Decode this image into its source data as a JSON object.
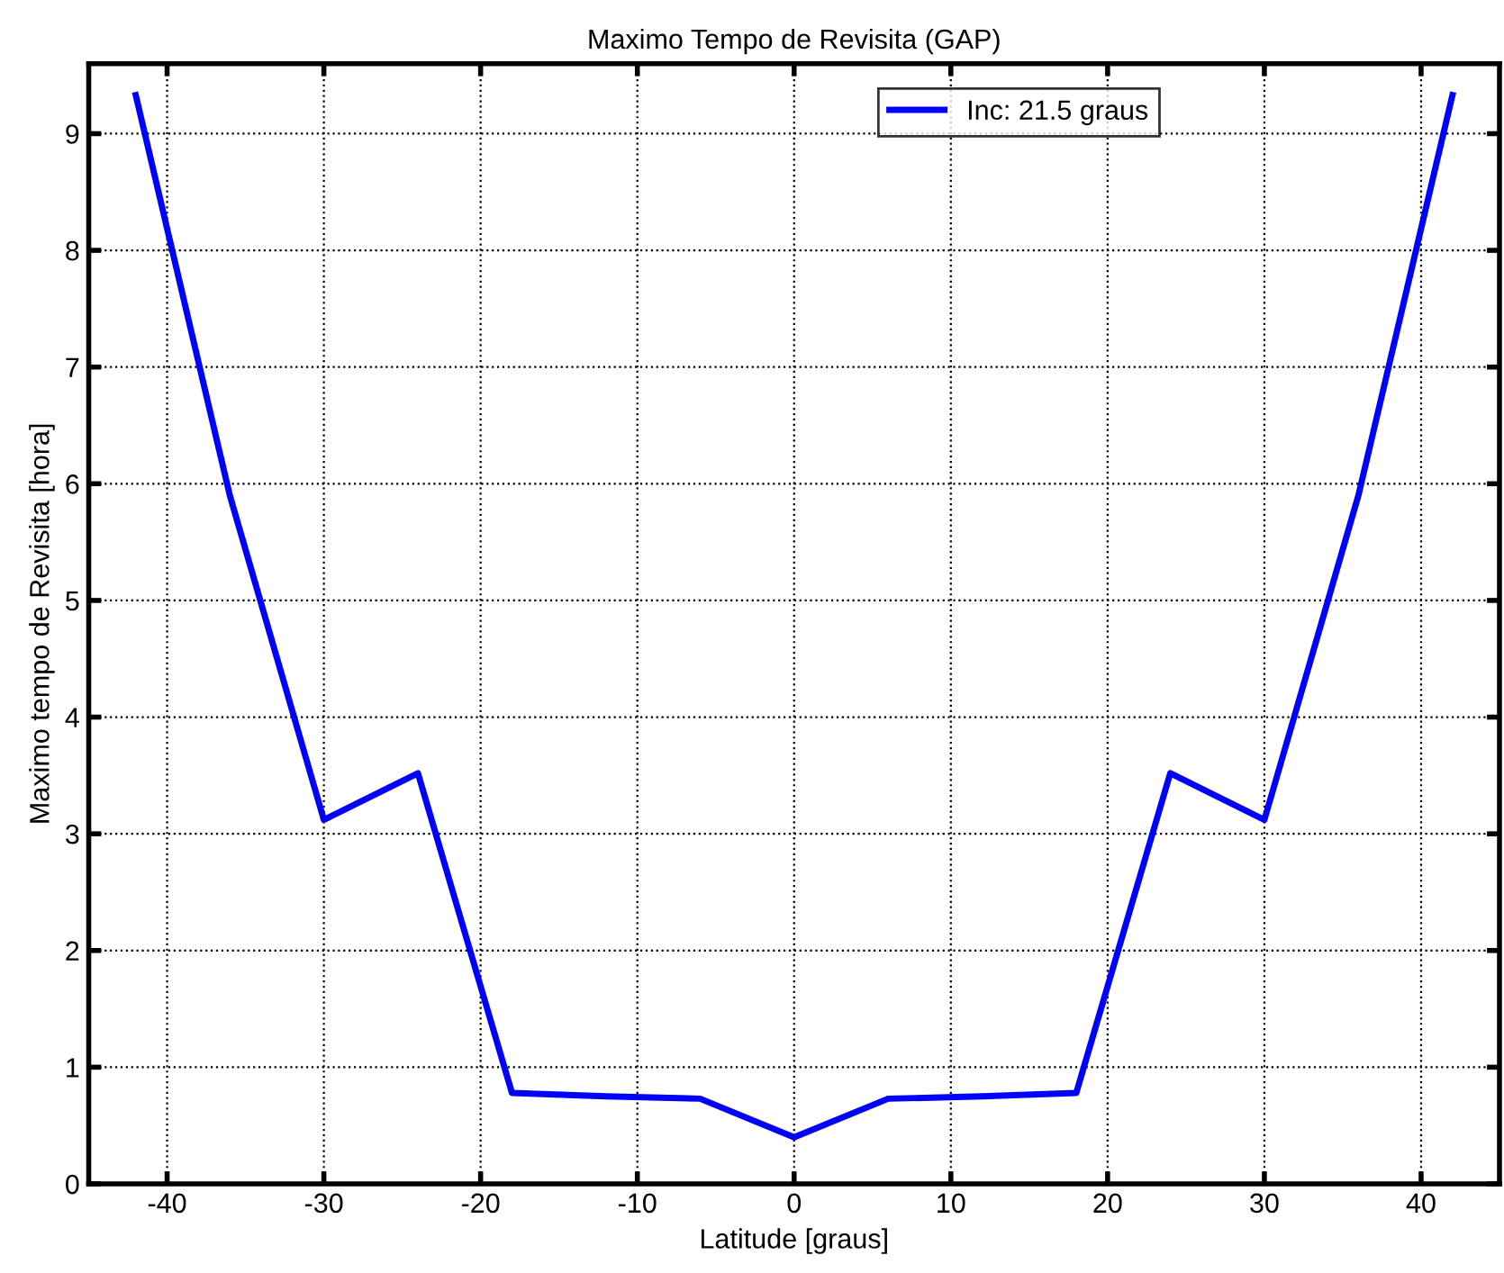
{
  "chart_data": {
    "type": "line",
    "title": "Maximo Tempo de Revisita (GAP)",
    "xlabel": "Latitude [graus]",
    "ylabel": "Maximo tempo de Revisita [hora]",
    "x": [
      -42,
      -36,
      -30,
      -24,
      -18,
      -12,
      -6,
      0,
      6,
      12,
      18,
      24,
      30,
      36,
      42
    ],
    "series": [
      {
        "name": "Inc: 21.5 graus",
        "color": "#0000ff",
        "values": [
          9.33,
          5.9,
          3.12,
          3.52,
          0.78,
          0.75,
          0.73,
          0.4,
          0.73,
          0.75,
          0.78,
          3.52,
          3.12,
          5.9,
          9.33
        ]
      }
    ],
    "xlim": [
      -45,
      45
    ],
    "xticks": [
      -40,
      -30,
      -20,
      -10,
      0,
      10,
      20,
      30,
      40
    ],
    "ylim": [
      0,
      9.6
    ],
    "yticks": [
      0,
      1,
      2,
      3,
      4,
      5,
      6,
      7,
      8,
      9
    ],
    "grid": true,
    "legend": "top right",
    "marker": "none",
    "line_style": "solid"
  }
}
